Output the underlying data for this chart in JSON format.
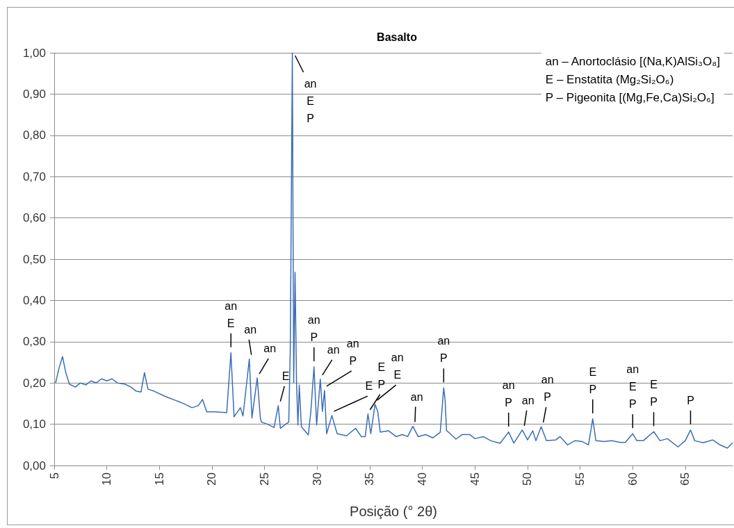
{
  "chart_data": {
    "type": "line",
    "title": "Basalto",
    "xlabel": "Posição (° 2θ)",
    "xlim": [
      5,
      69.5
    ],
    "xticks": [
      5,
      10,
      15,
      20,
      25,
      30,
      35,
      40,
      45,
      50,
      55,
      60,
      65
    ],
    "ylim": [
      0,
      1
    ],
    "yticks": [
      {
        "value": 0,
        "label": "0,00"
      },
      {
        "value": 0.1,
        "label": "0,10"
      },
      {
        "value": 0.2,
        "label": "0,20"
      },
      {
        "value": 0.3,
        "label": "0,30"
      },
      {
        "value": 0.4,
        "label": "0,40"
      },
      {
        "value": 0.5,
        "label": "0,50"
      },
      {
        "value": 0.6,
        "label": "0,60"
      },
      {
        "value": 0.7,
        "label": "0,70"
      },
      {
        "value": 0.8,
        "label": "0,80"
      },
      {
        "value": 0.9,
        "label": "0,90"
      },
      {
        "value": 1,
        "label": "1,00"
      }
    ],
    "grid": "y",
    "marker": "none",
    "line_style": "solid",
    "x": [
      5.13,
      5.45,
      5.79,
      6.1,
      6.45,
      7.0,
      7.5,
      8.0,
      8.5,
      9.0,
      9.5,
      10.0,
      10.5,
      11.0,
      11.73,
      12.3,
      12.8,
      13.25,
      13.58,
      13.91,
      14.5,
      15.5,
      16.5,
      17.3,
      18.1,
      18.7,
      19.1,
      19.5,
      20.3,
      21.4,
      21.8,
      22.1,
      22.7,
      22.95,
      23.55,
      23.8,
      24.3,
      24.6,
      24.7,
      25.3,
      25.9,
      26.3,
      26.5,
      27.0,
      27.3,
      27.45,
      27.64,
      27.77,
      27.9,
      28.04,
      28.17,
      28.3,
      28.5,
      29.16,
      29.4,
      29.7,
      29.95,
      30.3,
      30.5,
      30.7,
      30.9,
      31.4,
      31.9,
      32.8,
      33.65,
      34.2,
      34.57,
      34.83,
      35.1,
      35.5,
      35.76,
      36.0,
      36.8,
      37.5,
      38.1,
      38.6,
      39.1,
      39.6,
      40.3,
      41.0,
      41.7,
      42.03,
      42.16,
      42.3,
      43.2,
      43.8,
      44.5,
      45.0,
      45.8,
      46.5,
      47.4,
      48.2,
      48.7,
      49.5,
      50.0,
      50.5,
      50.8,
      51.3,
      51.8,
      52.7,
      53.1,
      53.8,
      54.5,
      55.2,
      55.8,
      56.2,
      56.5,
      57.3,
      58.0,
      58.8,
      59.3,
      60.0,
      60.4,
      61.0,
      62.0,
      62.6,
      63.3,
      64.3,
      65.0,
      65.5,
      65.9,
      66.7,
      67.6,
      68.3,
      69.0,
      69.5
    ],
    "series": [
      {
        "color": "#3a6db5",
        "values": [
          0.2,
          0.235,
          0.264,
          0.225,
          0.197,
          0.19,
          0.2,
          0.195,
          0.205,
          0.2,
          0.21,
          0.205,
          0.21,
          0.2,
          0.197,
          0.19,
          0.18,
          0.178,
          0.225,
          0.185,
          0.18,
          0.168,
          0.158,
          0.15,
          0.14,
          0.145,
          0.16,
          0.13,
          0.13,
          0.128,
          0.273,
          0.118,
          0.14,
          0.12,
          0.258,
          0.115,
          0.212,
          0.115,
          0.105,
          0.1,
          0.092,
          0.145,
          0.09,
          0.1,
          0.105,
          0.29,
          1.0,
          0.2,
          0.468,
          0.2,
          0.098,
          0.195,
          0.094,
          0.074,
          0.131,
          0.239,
          0.098,
          0.209,
          0.131,
          0.182,
          0.077,
          0.121,
          0.077,
          0.072,
          0.09,
          0.07,
          0.07,
          0.125,
          0.077,
          0.148,
          0.131,
          0.081,
          0.084,
          0.07,
          0.075,
          0.07,
          0.095,
          0.07,
          0.075,
          0.067,
          0.08,
          0.188,
          0.16,
          0.085,
          0.064,
          0.075,
          0.075,
          0.065,
          0.07,
          0.06,
          0.054,
          0.081,
          0.054,
          0.086,
          0.062,
          0.084,
          0.06,
          0.094,
          0.06,
          0.062,
          0.07,
          0.05,
          0.06,
          0.058,
          0.05,
          0.113,
          0.06,
          0.058,
          0.06,
          0.056,
          0.056,
          0.077,
          0.06,
          0.06,
          0.082,
          0.06,
          0.065,
          0.045,
          0.06,
          0.086,
          0.06,
          0.055,
          0.062,
          0.05,
          0.042,
          0.055
        ]
      }
    ],
    "annotations": [
      "an – Anortoclásio [(Na,K)AlSi₃O₈]",
      "E – Enstatita (Mg₂Si₂O₆)",
      "P – Pigeonita [(Mg,Fe,Ca)Si₂O₆]",
      {
        "text": "an\nE",
        "x": 21.8,
        "y": 0.273
      },
      {
        "text": "an",
        "x": 23.55,
        "y": 0.258
      },
      {
        "text": "an",
        "x": 24.3,
        "y": 0.212
      },
      {
        "text": "E",
        "x": 26.3,
        "y": 0.145
      },
      {
        "text": "an\nE\nP",
        "x": 27.64,
        "y": 1.0
      },
      {
        "text": "an\nP",
        "x": 29.7,
        "y": 0.239
      },
      {
        "text": "an",
        "x": 30.3,
        "y": 0.209
      },
      {
        "text": "an\nP",
        "x": 30.7,
        "y": 0.182
      },
      {
        "text": "E",
        "x": 31.4,
        "y": 0.121
      },
      {
        "text": "E\nP",
        "x": 34.83,
        "y": 0.125
      },
      {
        "text": "an\nE",
        "x": 35.5,
        "y": 0.148
      },
      {
        "text": "an",
        "x": 39.1,
        "y": 0.095
      },
      {
        "text": "an\nP",
        "x": 42.03,
        "y": 0.188
      },
      {
        "text": "an\nP",
        "x": 48.2,
        "y": 0.081
      },
      {
        "text": "an",
        "x": 49.5,
        "y": 0.086
      },
      {
        "text": "an\nP",
        "x": 51.3,
        "y": 0.094
      },
      {
        "text": "E\nP",
        "x": 56.2,
        "y": 0.113
      },
      {
        "text": "an\nE\nP",
        "x": 60.0,
        "y": 0.077
      },
      {
        "text": "E\nP",
        "x": 62.0,
        "y": 0.082
      },
      {
        "text": "P",
        "x": 65.5,
        "y": 0.086
      }
    ]
  }
}
